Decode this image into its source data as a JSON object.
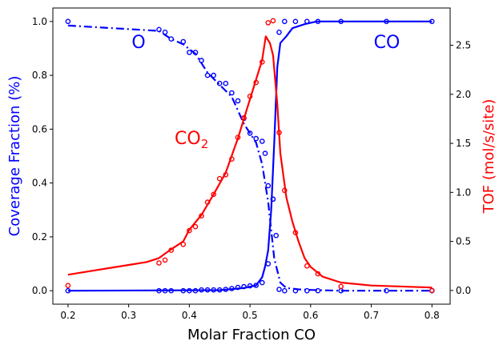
{
  "chart_data": {
    "type": "line",
    "xlabel": "Molar Fraction CO",
    "ylabel_left": "Coverage Fraction (%)",
    "ylabel_right": "TOF (mol/s/site)",
    "xlim": [
      0.175,
      0.83
    ],
    "ylim_left": [
      -0.05,
      1.05
    ],
    "ylim_right": [
      -0.14,
      2.88
    ],
    "xticks": [
      "0.2",
      "0.3",
      "0.4",
      "0.5",
      "0.6",
      "0.7",
      "0.8"
    ],
    "yticks_left": [
      "0.0",
      "0.2",
      "0.4",
      "0.6",
      "0.8",
      "1.0"
    ],
    "yticks_right": [
      "0.0",
      "0.5",
      "1.0",
      "1.5",
      "2.0",
      "2.5"
    ],
    "grid": false,
    "colors": {
      "left_axis": "#0000ff",
      "right_axis": "#ff0000"
    },
    "annotations": [
      {
        "text": "O",
        "color": "#0000ff"
      },
      {
        "text": "CO",
        "color": "#0000ff"
      },
      {
        "text": "CO",
        "sub": "2",
        "color": "#ff0000"
      }
    ],
    "series": [
      {
        "label": "O",
        "axis": "left",
        "color": "#0000ff",
        "style": "dashdot",
        "markers": {
          "x": [
            0.2,
            0.35,
            0.36,
            0.37,
            0.39,
            0.4,
            0.41,
            0.42,
            0.43,
            0.44,
            0.45,
            0.46,
            0.47,
            0.48,
            0.49,
            0.5,
            0.51,
            0.52,
            0.525,
            0.53,
            0.538,
            0.543,
            0.548,
            0.557,
            0.575,
            0.594,
            0.612,
            0.65,
            0.725,
            0.8
          ],
          "y": [
            1.0,
            0.97,
            0.96,
            0.935,
            0.925,
            0.885,
            0.885,
            0.855,
            0.8,
            0.8,
            0.77,
            0.77,
            0.735,
            0.705,
            0.64,
            0.585,
            0.565,
            0.555,
            0.51,
            0.39,
            0.34,
            0.205,
            0.005,
            0.0,
            0.0,
            0.0,
            0.0,
            0.0,
            0.0,
            0.0
          ]
        },
        "line": {
          "x": [
            0.2,
            0.35,
            0.37,
            0.39,
            0.41,
            0.43,
            0.45,
            0.47,
            0.49,
            0.51,
            0.52,
            0.53,
            0.54,
            0.55,
            0.56,
            0.58,
            0.6,
            0.65,
            0.8
          ],
          "y": [
            0.985,
            0.965,
            0.935,
            0.915,
            0.88,
            0.81,
            0.765,
            0.72,
            0.62,
            0.55,
            0.47,
            0.33,
            0.12,
            0.03,
            0.01,
            0.005,
            0.003,
            0.0,
            0.0
          ]
        }
      },
      {
        "label": "CO",
        "axis": "left",
        "color": "#0000ff",
        "style": "solid",
        "markers": {
          "x": [
            0.2,
            0.35,
            0.36,
            0.37,
            0.39,
            0.4,
            0.41,
            0.42,
            0.43,
            0.44,
            0.45,
            0.46,
            0.47,
            0.48,
            0.49,
            0.5,
            0.51,
            0.52,
            0.53,
            0.538,
            0.548,
            0.557,
            0.575,
            0.594,
            0.612,
            0.65,
            0.725,
            0.8
          ],
          "y": [
            0.0,
            0.0,
            0.0,
            0.0,
            0.0,
            0.0,
            0.0,
            0.003,
            0.003,
            0.003,
            0.003,
            0.005,
            0.008,
            0.012,
            0.015,
            0.018,
            0.02,
            0.03,
            0.1,
            0.34,
            0.96,
            1.0,
            1.0,
            1.0,
            1.0,
            1.0,
            1.0,
            1.0
          ]
        },
        "line": {
          "x": [
            0.2,
            0.45,
            0.49,
            0.51,
            0.52,
            0.525,
            0.53,
            0.535,
            0.54,
            0.545,
            0.55,
            0.56,
            0.57,
            0.59,
            0.61,
            0.65,
            0.8
          ],
          "y": [
            0.0,
            0.002,
            0.01,
            0.02,
            0.05,
            0.09,
            0.15,
            0.3,
            0.55,
            0.83,
            0.92,
            0.945,
            0.975,
            0.99,
            1.0,
            1.0,
            1.0
          ]
        }
      },
      {
        "label": "CO2",
        "axis": "right",
        "color": "#ff0000",
        "style": "solid",
        "markers": {
          "x": [
            0.2,
            0.35,
            0.36,
            0.37,
            0.39,
            0.4,
            0.41,
            0.42,
            0.43,
            0.44,
            0.45,
            0.46,
            0.47,
            0.48,
            0.49,
            0.5,
            0.51,
            0.52,
            0.53,
            0.538,
            0.548,
            0.557,
            0.575,
            0.594,
            0.612,
            0.65,
            0.8
          ],
          "y": [
            0.05,
            0.28,
            0.31,
            0.41,
            0.47,
            0.61,
            0.65,
            0.76,
            0.9,
            0.98,
            1.14,
            1.18,
            1.34,
            1.56,
            1.76,
            1.98,
            2.12,
            2.33,
            2.73,
            2.75,
            1.61,
            1.02,
            0.59,
            0.25,
            0.17,
            0.04,
            0.0
          ]
        },
        "line": {
          "x": [
            0.2,
            0.25,
            0.3,
            0.33,
            0.35,
            0.37,
            0.39,
            0.4,
            0.42,
            0.44,
            0.46,
            0.48,
            0.5,
            0.52,
            0.526,
            0.533,
            0.538,
            0.545,
            0.55,
            0.56,
            0.57,
            0.58,
            0.59,
            0.6,
            0.62,
            0.65,
            0.7,
            0.8
          ],
          "y": [
            0.16,
            0.21,
            0.26,
            0.29,
            0.33,
            0.42,
            0.5,
            0.62,
            0.77,
            0.98,
            1.2,
            1.55,
            1.95,
            2.35,
            2.59,
            2.52,
            2.4,
            1.9,
            1.4,
            0.95,
            0.7,
            0.5,
            0.33,
            0.24,
            0.14,
            0.08,
            0.05,
            0.03
          ]
        }
      }
    ]
  }
}
